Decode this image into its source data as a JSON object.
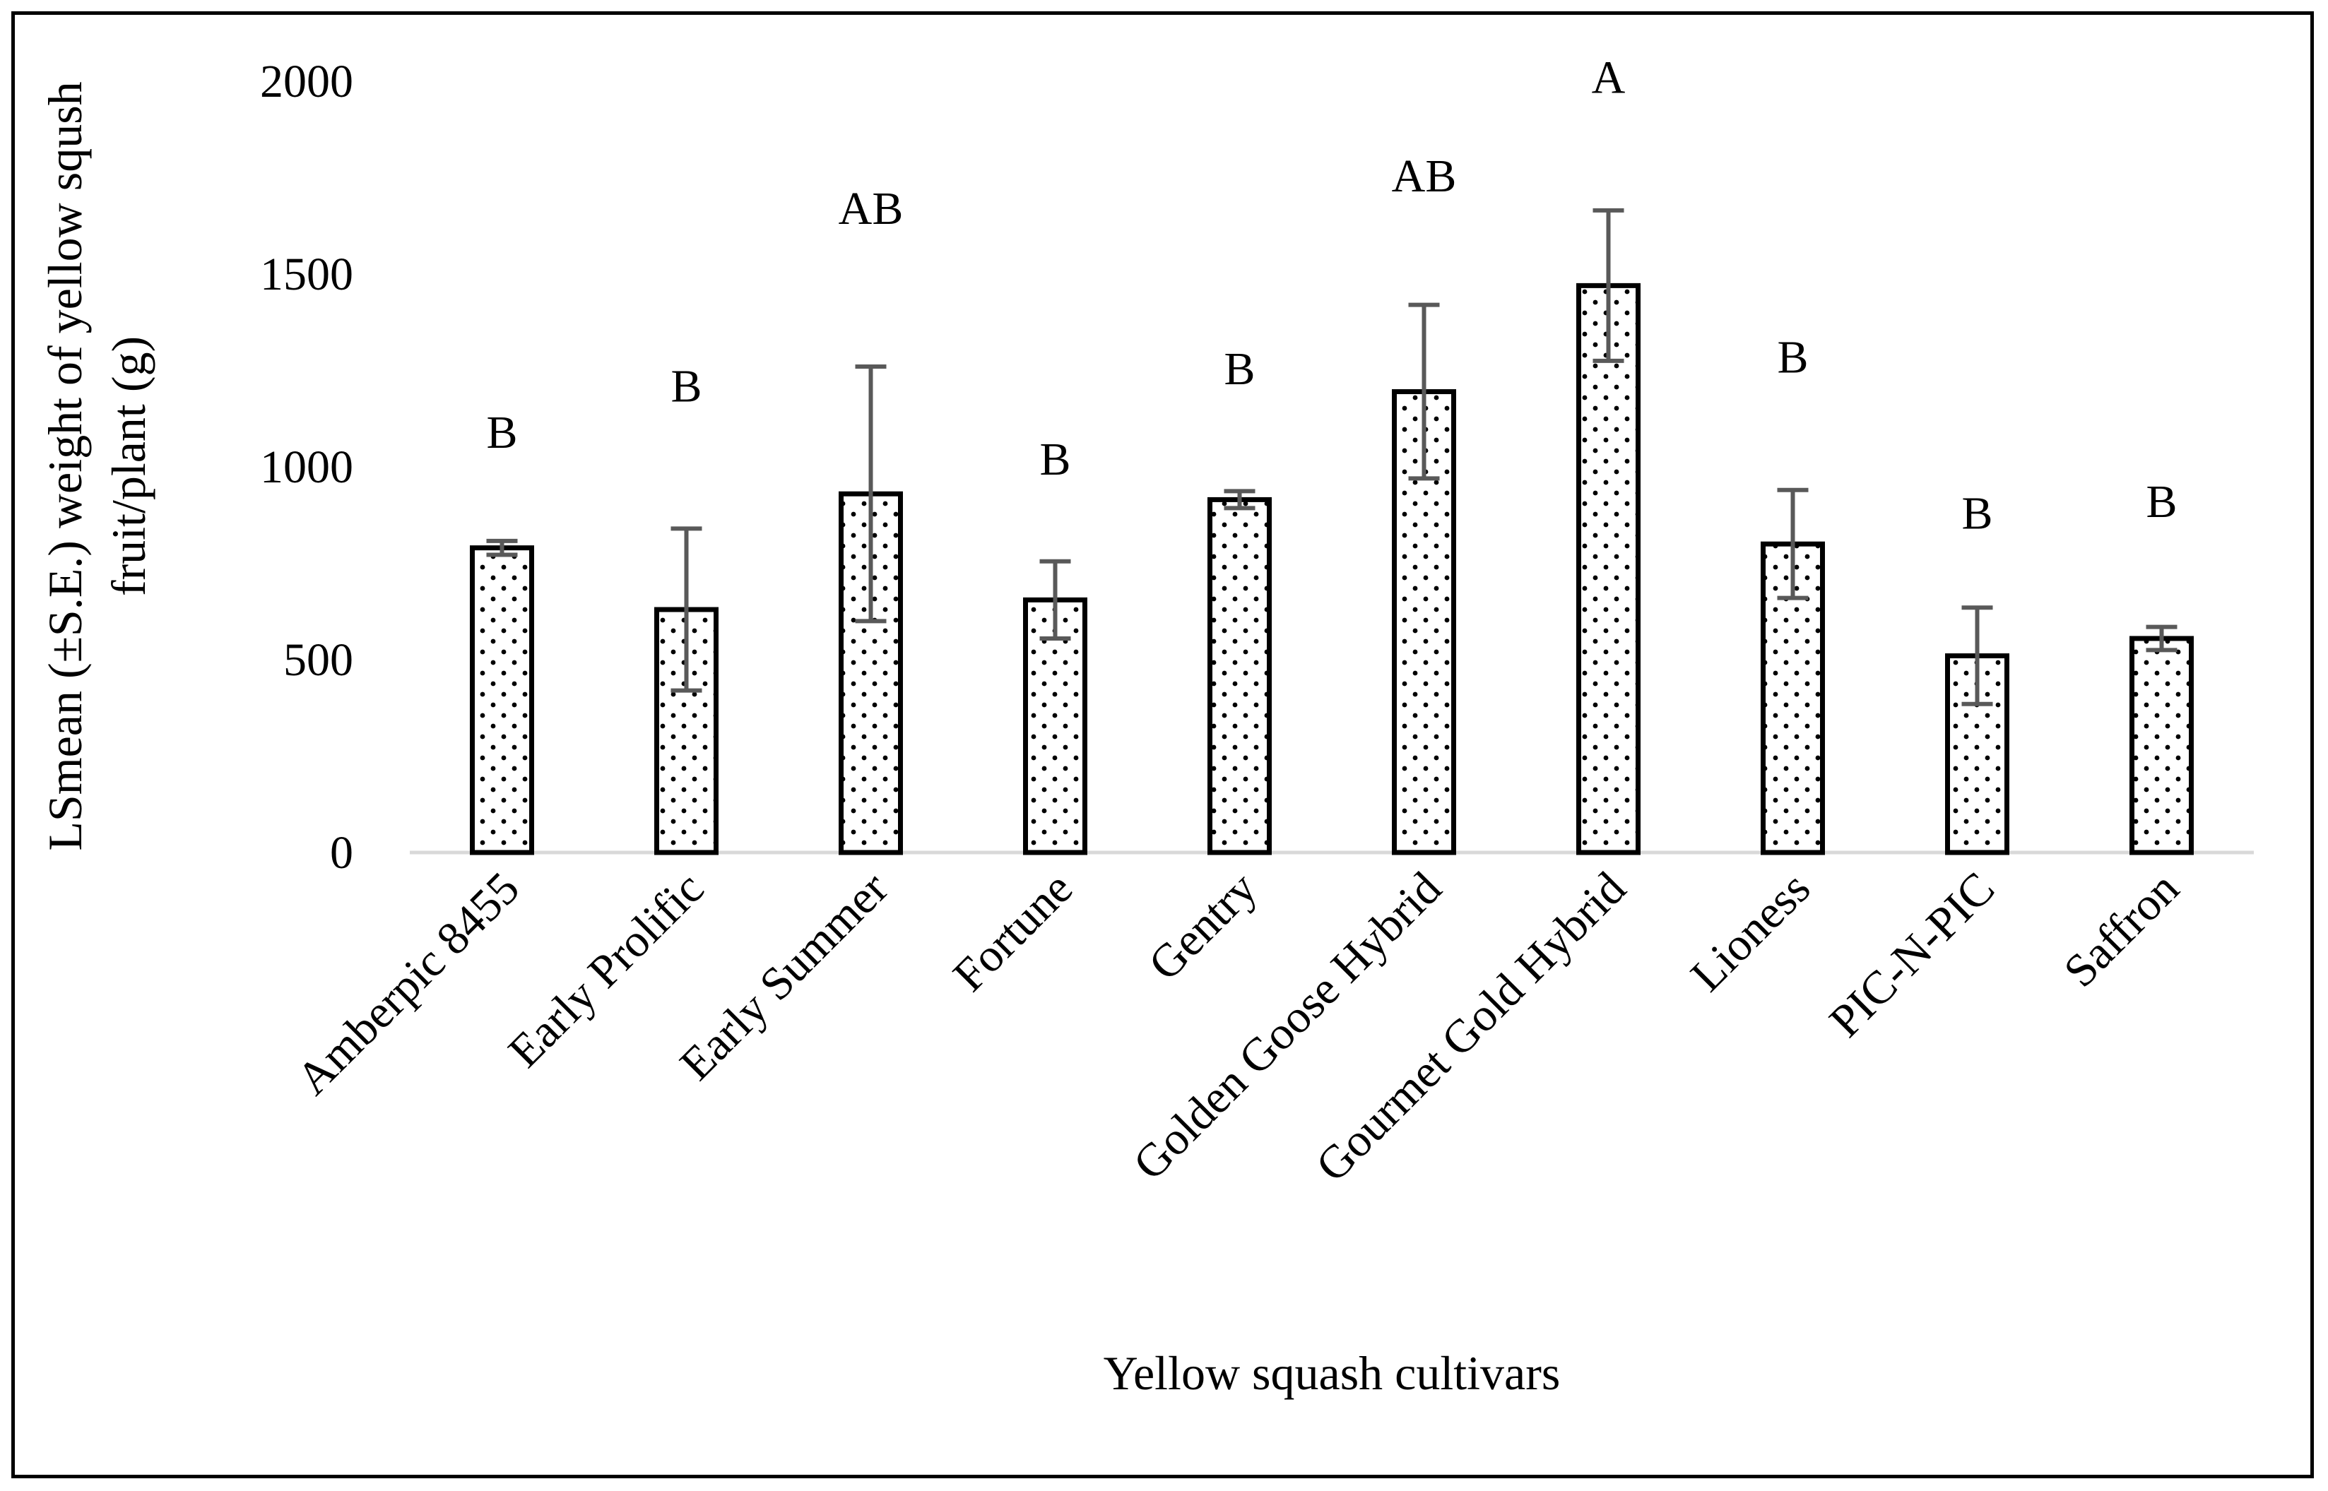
{
  "chart_data": {
    "type": "bar",
    "title": "",
    "xlabel": "Yellow squash cultivars",
    "ylabel_lines": [
      "LSmean (±S.E.) weight of yellow sqush",
      "fruit/plant (g)"
    ],
    "ylim": [
      0,
      2000
    ],
    "yticks": [
      0,
      500,
      1000,
      1500,
      2000
    ],
    "ytick_labels": [
      "0",
      "500",
      "1000",
      "1500",
      "2000"
    ],
    "grid": false,
    "bar_fill": "dotted",
    "colors": {
      "bar_edge": "#000000",
      "bar_fill": "#ffffff",
      "dots": "#000000",
      "error_bar": "#595959",
      "axis": "#d9d9d9"
    },
    "categories": [
      "Amberpic 8455",
      "Early Prolific",
      "Early Summer",
      "Fortune",
      "Gentry",
      "Golden Goose Hybrid",
      "Gourmet Gold Hybrid",
      "Lioness",
      "PIC-N-PIC",
      "Saffron"
    ],
    "values": [
      790,
      630,
      930,
      655,
      915,
      1195,
      1470,
      800,
      510,
      555
    ],
    "errors": [
      18,
      210,
      330,
      100,
      22,
      225,
      195,
      140,
      125,
      30
    ],
    "significance_letters": [
      "B",
      "B",
      "AB",
      "B",
      "B",
      "AB",
      "A",
      "B",
      "B",
      "B"
    ],
    "letter_values": [
      1090,
      1210,
      1670,
      1020,
      1255,
      1755,
      2010,
      1285,
      880,
      910
    ]
  }
}
